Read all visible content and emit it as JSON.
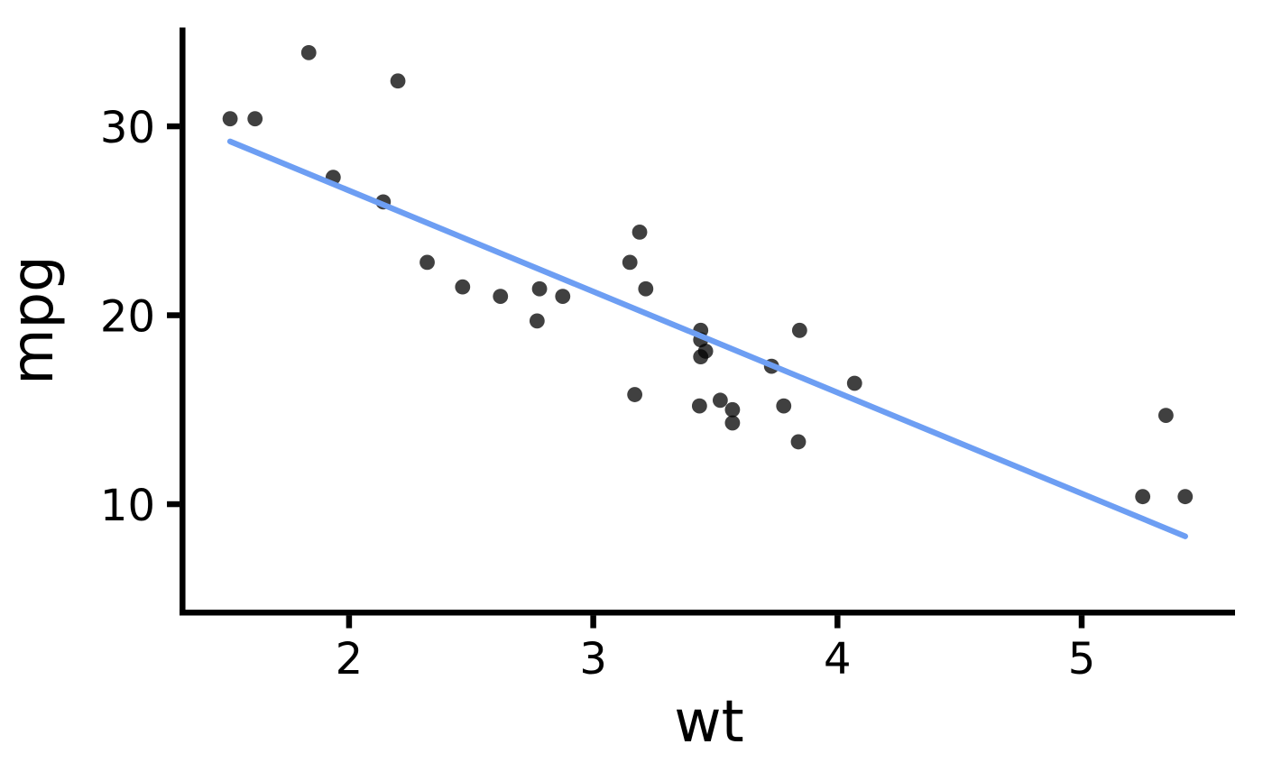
{
  "chart_data": {
    "type": "scatter",
    "title": "",
    "xlabel": "wt",
    "ylabel": "mpg",
    "grid": "none",
    "legend": "none",
    "background_color": "#FFFFFF",
    "axis_color": "#000000",
    "x_axis": {
      "range": [
        1.318,
        5.628
      ],
      "ticks": [
        {
          "value": 2,
          "label": "2"
        },
        {
          "value": 3,
          "label": "3"
        },
        {
          "value": 4,
          "label": "4"
        },
        {
          "value": 5,
          "label": "5"
        }
      ]
    },
    "y_axis": {
      "range": [
        4.26,
        35.23
      ],
      "ticks": [
        {
          "value": 10,
          "label": "10"
        },
        {
          "value": 20,
          "label": "20"
        },
        {
          "value": 30,
          "label": "30"
        }
      ]
    },
    "series": [
      {
        "name": "mtcars-points",
        "color": "#000000",
        "opacity": 0.75,
        "marker_radius": 8.4,
        "points": [
          {
            "wt": 2.62,
            "mpg": 21.0
          },
          {
            "wt": 2.875,
            "mpg": 21.0
          },
          {
            "wt": 2.32,
            "mpg": 22.8
          },
          {
            "wt": 3.215,
            "mpg": 21.4
          },
          {
            "wt": 3.44,
            "mpg": 18.7
          },
          {
            "wt": 3.46,
            "mpg": 18.1
          },
          {
            "wt": 3.57,
            "mpg": 14.3
          },
          {
            "wt": 3.19,
            "mpg": 24.4
          },
          {
            "wt": 3.15,
            "mpg": 22.8
          },
          {
            "wt": 3.44,
            "mpg": 19.2
          },
          {
            "wt": 3.44,
            "mpg": 17.8
          },
          {
            "wt": 4.07,
            "mpg": 16.4
          },
          {
            "wt": 3.73,
            "mpg": 17.3
          },
          {
            "wt": 3.78,
            "mpg": 15.2
          },
          {
            "wt": 5.25,
            "mpg": 10.4
          },
          {
            "wt": 5.424,
            "mpg": 10.4
          },
          {
            "wt": 5.345,
            "mpg": 14.7
          },
          {
            "wt": 2.2,
            "mpg": 32.4
          },
          {
            "wt": 1.615,
            "mpg": 30.4
          },
          {
            "wt": 1.835,
            "mpg": 33.9
          },
          {
            "wt": 2.465,
            "mpg": 21.5
          },
          {
            "wt": 3.52,
            "mpg": 15.5
          },
          {
            "wt": 3.435,
            "mpg": 15.2
          },
          {
            "wt": 3.84,
            "mpg": 13.3
          },
          {
            "wt": 3.845,
            "mpg": 19.2
          },
          {
            "wt": 1.935,
            "mpg": 27.3
          },
          {
            "wt": 2.14,
            "mpg": 26.0
          },
          {
            "wt": 1.513,
            "mpg": 30.4
          },
          {
            "wt": 3.17,
            "mpg": 15.8
          },
          {
            "wt": 2.77,
            "mpg": 19.7
          },
          {
            "wt": 3.57,
            "mpg": 15.0
          },
          {
            "wt": 2.78,
            "mpg": 21.4
          }
        ]
      }
    ],
    "trend_line": {
      "name": "linear-regression-fit",
      "color": "#6D9EF3",
      "stroke_width": 6.4,
      "start": {
        "wt": 1.513,
        "mpg": 29.2
      },
      "end": {
        "wt": 5.424,
        "mpg": 8.3
      }
    }
  }
}
